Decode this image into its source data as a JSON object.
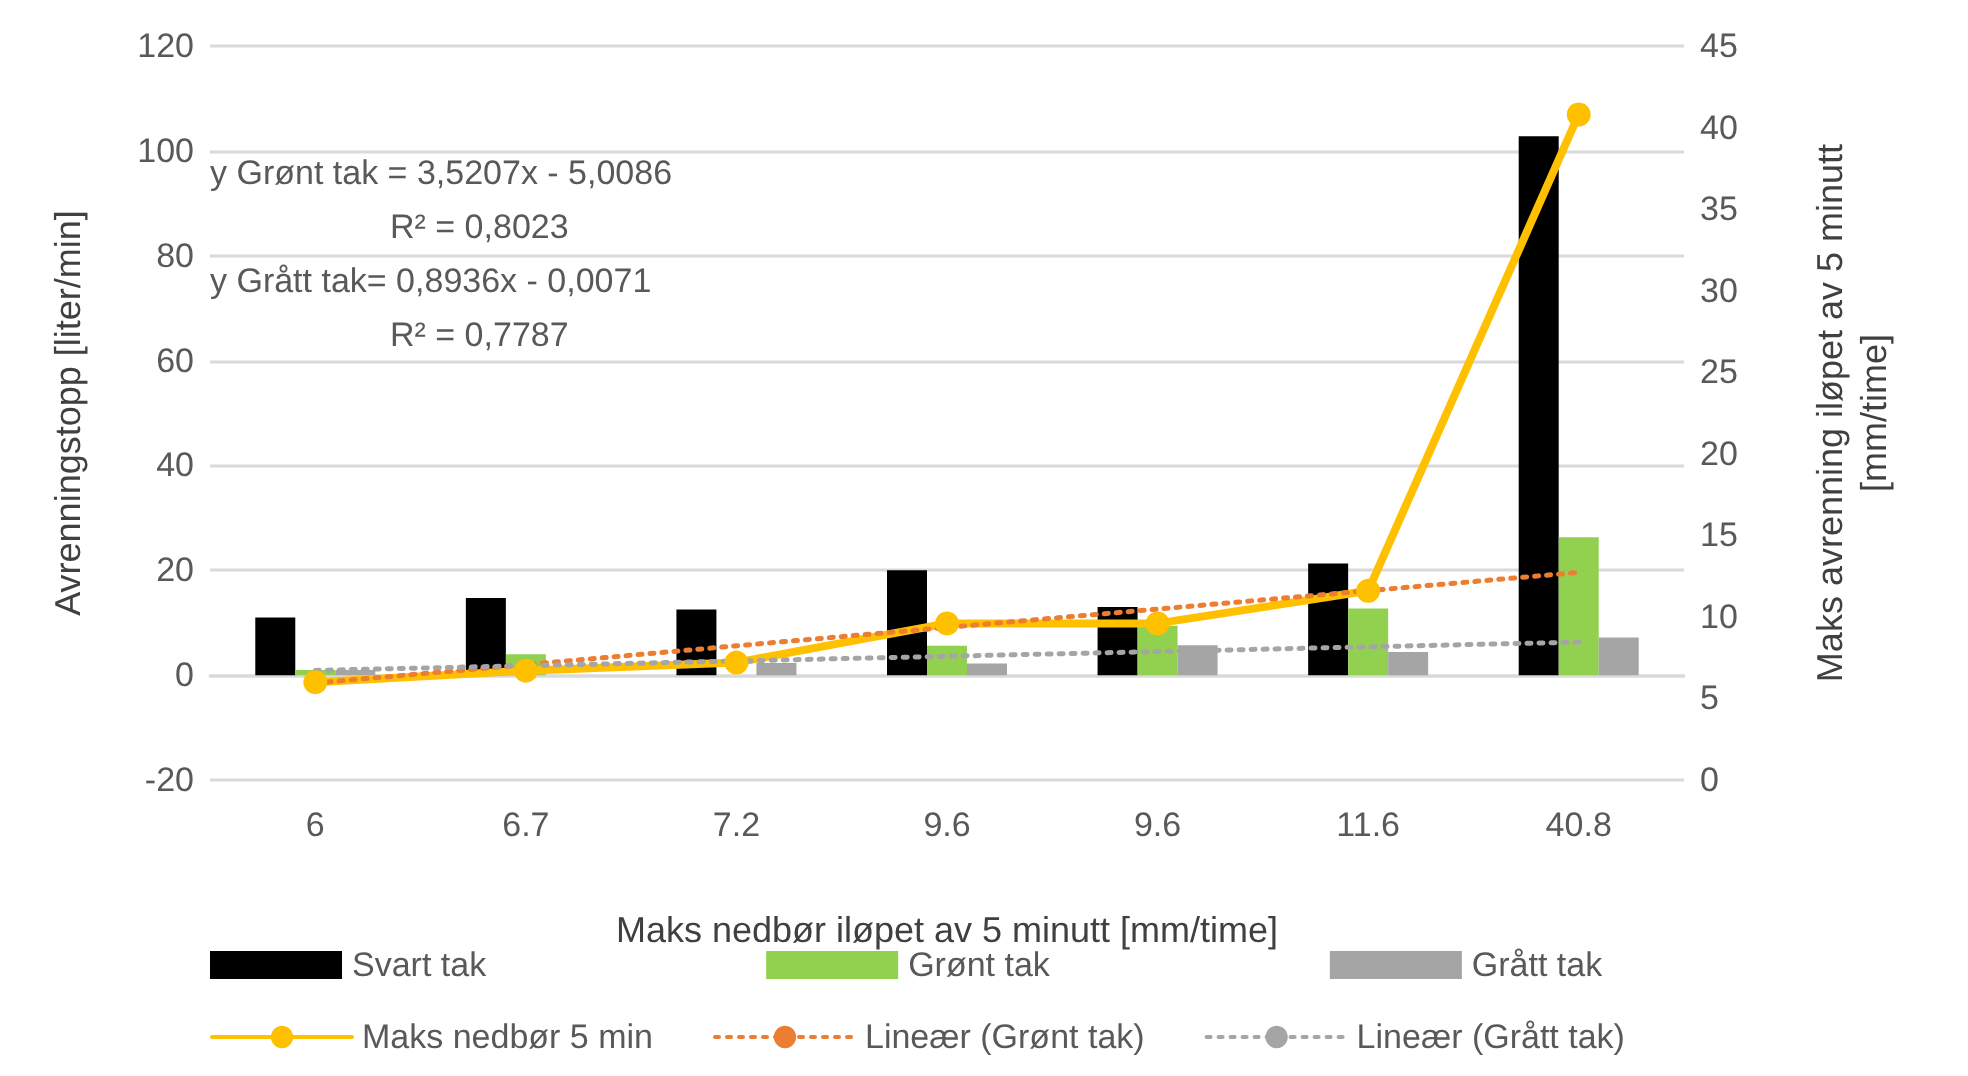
{
  "chart_data": {
    "type": "bar",
    "categories": [
      "6",
      "6.7",
      "7.2",
      "9.6",
      "9.6",
      "11.6",
      "40.8"
    ],
    "series": [
      {
        "name": "Svart tak",
        "color": "#000000",
        "values": [
          11,
          14.7,
          12.5,
          20,
          13,
          21.3,
          102.8
        ]
      },
      {
        "name": "Grønt tak",
        "color": "#92d050",
        "values": [
          1,
          4,
          null,
          5.6,
          9.4,
          12.7,
          26.3
        ]
      },
      {
        "name": "Grått tak",
        "color": "#a5a5a5",
        "values": [
          1,
          null,
          2.3,
          2.2,
          5.7,
          4.4,
          7.2
        ]
      },
      {
        "name": "Maks nedbør 5 min",
        "type": "line",
        "axis": "y2",
        "color": "#ffc000",
        "marker": "circle",
        "line_style": "solid",
        "values": [
          6,
          6.7,
          7.2,
          9.6,
          9.6,
          11.6,
          40.8
        ]
      },
      {
        "name": "Lineær (Grønt tak)",
        "type": "line",
        "color": "#ed7d31",
        "marker": "none",
        "line_style": "dotted",
        "values": [
          -1.5,
          2.0,
          5.6,
          9.1,
          12.6,
          16.1,
          19.6
        ]
      },
      {
        "name": "Lineær (Grått tak)",
        "type": "line",
        "color": "#a5a5a5",
        "marker": "none",
        "line_style": "dotted",
        "values": [
          0.9,
          1.8,
          2.7,
          3.6,
          4.5,
          5.4,
          6.3
        ]
      }
    ],
    "xlabel": "Maks nedbør iløpet av 5 minutt [mm/time]",
    "ylabel": "Avrenningstopp [liter/min]",
    "y2label": "Maks avrenning iløpet av 5 minutt [mm/time]",
    "ylim": [
      -20,
      120
    ],
    "yticks": [
      -20,
      0,
      20,
      40,
      60,
      80,
      100,
      120
    ],
    "y2lim": [
      0,
      45
    ],
    "y2ticks": [
      0,
      5,
      10,
      15,
      20,
      25,
      30,
      35,
      40,
      45
    ],
    "annotations": [
      "y Grønt tak = 3,5207x - 5,0086",
      "R² = 0,8023",
      "y Grått tak= 0,8936x - 0,0071",
      "R² = 0,7787"
    ],
    "grid": "y",
    "legend": "bottom"
  }
}
